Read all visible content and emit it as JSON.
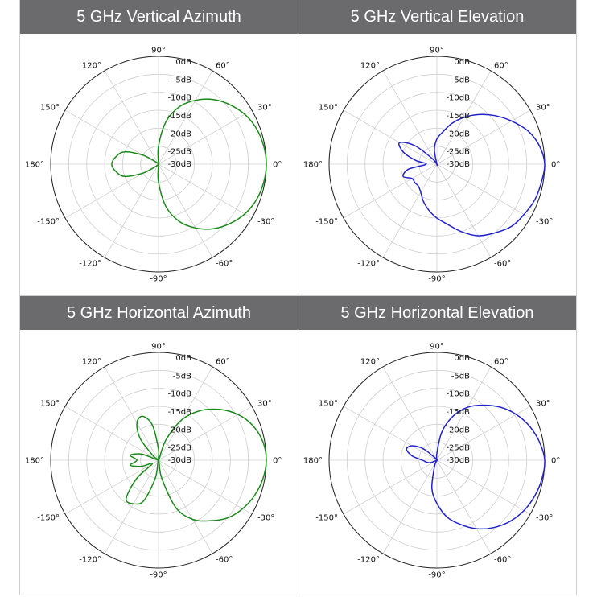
{
  "chart_data": [
    {
      "type": "polar",
      "title": "5 GHz Vertical Azimuth",
      "color": "#1a8a1a",
      "r_tick_labels": [
        "0dB",
        "-5dB",
        "-10dB",
        "-15dB",
        "-20dB",
        "-25dB",
        "-30dB"
      ],
      "angle_tick_labels": [
        "0°",
        "30°",
        "60°",
        "90°",
        "120°",
        "150°",
        "180°",
        "-150°",
        "-120°",
        "-90°",
        "-60°",
        "-30°"
      ],
      "rlim_db": [
        -30,
        0
      ],
      "series": [
        {
          "angles_deg": [
            0,
            10,
            20,
            30,
            40,
            50,
            60,
            70,
            80,
            90,
            100,
            110,
            120,
            130,
            140,
            150,
            160,
            170,
            180,
            -170,
            -160,
            -150,
            -140,
            -130,
            -120,
            -110,
            -100,
            -90,
            -80,
            -70,
            -60,
            -50,
            -40,
            -30,
            -20,
            -10
          ],
          "gain_db": [
            0,
            -0.3,
            -1,
            -2.3,
            -4.2,
            -6.5,
            -9.5,
            -13,
            -18,
            -25,
            -30,
            -30,
            -30,
            -30,
            -29,
            -25,
            -20,
            -18,
            -17,
            -18,
            -20,
            -25,
            -29,
            -30,
            -30,
            -30,
            -30,
            -25,
            -18,
            -13,
            -9.5,
            -6.5,
            -4.2,
            -2.3,
            -1,
            -0.3
          ]
        }
      ]
    },
    {
      "type": "polar",
      "title": "5 GHz Vertical Elevation",
      "color": "#2222cc",
      "r_tick_labels": [
        "0dB",
        "-5dB",
        "-10dB",
        "-15dB",
        "-20dB",
        "-25dB",
        "-30dB"
      ],
      "angle_tick_labels": [
        "0°",
        "30°",
        "60°",
        "90°",
        "120°",
        "150°",
        "180°",
        "-150°",
        "-120°",
        "-90°",
        "-60°",
        "-30°"
      ],
      "rlim_db": [
        -30,
        0
      ],
      "series": [
        {
          "angles_deg": [
            0,
            10,
            20,
            30,
            40,
            50,
            60,
            70,
            80,
            90,
            100,
            110,
            120,
            130,
            140,
            150,
            160,
            170,
            180,
            -170,
            -160,
            -150,
            -140,
            -130,
            -120,
            -110,
            -100,
            -90,
            -80,
            -70,
            -60,
            -50,
            -40,
            -30,
            -20,
            -10
          ],
          "gain_db": [
            0,
            -1,
            -3,
            -6,
            -9,
            -12,
            -15,
            -18,
            -21,
            -23,
            -26,
            -30,
            -30,
            -28,
            -22,
            -18,
            -20,
            -24,
            -27,
            -22,
            -20,
            -22,
            -22,
            -22,
            -21,
            -19,
            -17,
            -15,
            -13,
            -10,
            -7,
            -5,
            -3,
            -2,
            -1,
            -0.5
          ]
        }
      ]
    },
    {
      "type": "polar",
      "title": "5 GHz Horizontal Azimuth",
      "color": "#1a8a1a",
      "r_tick_labels": [
        "0dB",
        "-5dB",
        "-10dB",
        "-15dB",
        "-20dB",
        "-25dB",
        "-30dB"
      ],
      "angle_tick_labels": [
        "0°",
        "30°",
        "60°",
        "90°",
        "120°",
        "150°",
        "180°",
        "-150°",
        "-120°",
        "-90°",
        "-60°",
        "-30°"
      ],
      "rlim_db": [
        -30,
        0
      ],
      "series": [
        {
          "angles_deg": [
            0,
            10,
            20,
            30,
            40,
            50,
            60,
            70,
            80,
            90,
            100,
            110,
            120,
            130,
            140,
            150,
            160,
            170,
            180,
            -170,
            -160,
            -150,
            -140,
            -130,
            -120,
            -110,
            -100,
            -90,
            -80,
            -70,
            -60,
            -50,
            -40,
            -30,
            -20,
            -10
          ],
          "gain_db": [
            0,
            -0.5,
            -2,
            -4.5,
            -8,
            -12,
            -17,
            -24,
            -30,
            -27,
            -20,
            -17,
            -18,
            -22,
            -28,
            -30,
            -25,
            -22,
            -24,
            -22,
            -25,
            -28,
            -22,
            -16,
            -16,
            -18,
            -25,
            -30,
            -25,
            -16,
            -11,
            -8,
            -5,
            -3,
            -1.5,
            -0.5
          ]
        }
      ]
    },
    {
      "type": "polar",
      "title": "5 GHz Horizontal Elevation",
      "color": "#2222cc",
      "r_tick_labels": [
        "0dB",
        "-5dB",
        "-10dB",
        "-15dB",
        "-20dB",
        "-25dB",
        "-30dB"
      ],
      "angle_tick_labels": [
        "0°",
        "30°",
        "60°",
        "90°",
        "120°",
        "150°",
        "180°",
        "-150°",
        "-120°",
        "-90°",
        "-60°",
        "-30°"
      ],
      "rlim_db": [
        -30,
        0
      ],
      "series": [
        {
          "angles_deg": [
            0,
            10,
            20,
            30,
            40,
            50,
            60,
            70,
            80,
            90,
            100,
            110,
            120,
            130,
            140,
            150,
            160,
            170,
            180,
            -170,
            -160,
            -150,
            -140,
            -130,
            -120,
            -110,
            -100,
            -90,
            -80,
            -70,
            -60,
            -50,
            -40,
            -30,
            -20,
            -10
          ],
          "gain_db": [
            0,
            -1,
            -2.5,
            -4.5,
            -7,
            -10,
            -13,
            -17,
            -22,
            -28,
            -30,
            -30,
            -30,
            -29,
            -25,
            -22,
            -21,
            -23,
            -26,
            -27,
            -28,
            -30,
            -30,
            -30,
            -30,
            -28,
            -22,
            -18,
            -14,
            -11,
            -8,
            -5.5,
            -3.5,
            -2,
            -1,
            -0.3
          ]
        }
      ]
    }
  ]
}
